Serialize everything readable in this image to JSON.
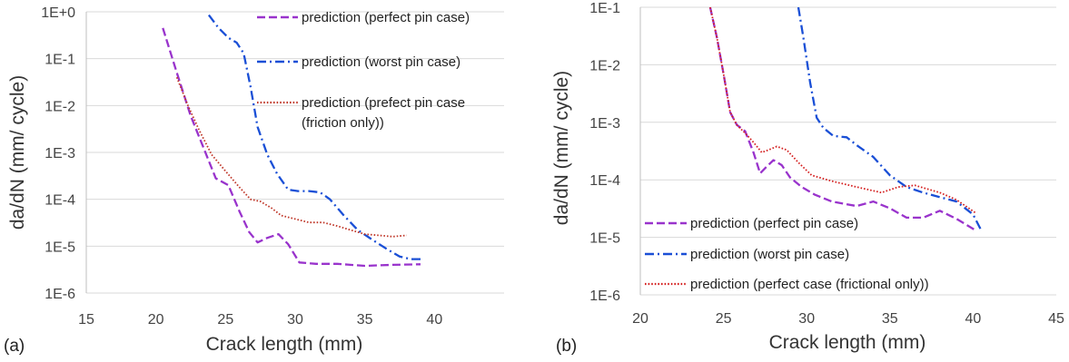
{
  "chart_data": [
    {
      "type": "line",
      "panel_label": "(a)",
      "xlabel": "Crack length (mm)",
      "ylabel": "da/dN (mm/ cycle)",
      "xlim": [
        15,
        45
      ],
      "ylim": [
        1e-06,
        1
      ],
      "y_scale": "log",
      "grid": "horizontal",
      "legend_position": "top-right",
      "x_ticks": [
        "15",
        "20",
        "25",
        "30",
        "35",
        "40"
      ],
      "y_ticks": [
        "1E-6",
        "1E-5",
        "1E-4",
        "1E-3",
        "1E-2",
        "1E-1",
        "1E+0"
      ],
      "series": [
        {
          "name": "prediction (perfect pin case)",
          "color": "#9933cc",
          "style": "dashed",
          "x": [
            20.5,
            21.5,
            22.5,
            23.5,
            24.3,
            25.2,
            26,
            26.7,
            27.3,
            28,
            28.8,
            29.5,
            30.3,
            31.5,
            33,
            35,
            37,
            39
          ],
          "y": [
            0.45,
            0.05,
            0.006,
            0.0011,
            0.00028,
            0.0002,
            5.5e-05,
            2e-05,
            1.2e-05,
            1.5e-05,
            1.8e-05,
            1.1e-05,
            4.5e-06,
            4.2e-06,
            4.2e-06,
            3.8e-06,
            4e-06,
            4.1e-06
          ]
        },
        {
          "name": "prediction (worst pin case)",
          "color": "#1a4fd6",
          "style": "dashdot",
          "x": [
            23.8,
            24.5,
            25.2,
            25.8,
            26.3,
            26.8,
            27.3,
            28,
            28.7,
            29.5,
            30.2,
            31,
            31.8,
            32.5,
            33.5,
            34.5,
            35.5,
            36.5,
            37.5,
            38.3,
            39
          ],
          "y": [
            0.85,
            0.45,
            0.28,
            0.22,
            0.13,
            0.025,
            0.0035,
            0.0009,
            0.00035,
            0.00016,
            0.00015,
            0.00015,
            0.00014,
            0.0001,
            4.5e-05,
            2.2e-05,
            1.4e-05,
            9e-06,
            6e-06,
            5.3e-06,
            5.3e-06
          ]
        },
        {
          "name": "prediction (prefect pin case\n(friction only))",
          "color": "#c0392b",
          "style": "dotted",
          "x": [
            21.5,
            22.3,
            23.1,
            24,
            25,
            26,
            26.8,
            27.5,
            28.3,
            29,
            30,
            31,
            32,
            33,
            34,
            35,
            36,
            37,
            38
          ],
          "y": [
            0.04,
            0.01,
            0.003,
            0.0009,
            0.0004,
            0.00018,
            0.0001,
            9e-05,
            6.5e-05,
            4.5e-05,
            3.8e-05,
            3.2e-05,
            3.2e-05,
            2.7e-05,
            2.2e-05,
            1.8e-05,
            1.7e-05,
            1.6e-05,
            1.7e-05
          ]
        }
      ]
    },
    {
      "type": "line",
      "panel_label": "(b)",
      "xlabel": "Crack length (mm)",
      "ylabel": "da/dN (mm/ cycle)",
      "xlim": [
        20,
        45
      ],
      "ylim": [
        1e-06,
        0.1
      ],
      "y_scale": "log",
      "grid": "horizontal",
      "legend_position": "bottom-left",
      "x_ticks": [
        "20",
        "25",
        "30",
        "35",
        "40",
        "45"
      ],
      "y_ticks": [
        "1E-6",
        "1E-5",
        "1E-4",
        "1E-3",
        "1E-2",
        "1E-1"
      ],
      "series": [
        {
          "name": "prediction (perfect pin case)",
          "color": "#9933cc",
          "style": "dashed",
          "x": [
            24.2,
            24.6,
            25,
            25.4,
            25.8,
            26.3,
            26.8,
            27.2,
            27.6,
            28,
            28.5,
            29,
            29.7,
            30.5,
            31.5,
            33,
            34,
            35,
            36,
            37,
            38,
            39,
            40.2
          ],
          "y": [
            0.1,
            0.03,
            0.007,
            0.0015,
            0.0009,
            0.0007,
            0.0003,
            0.00013,
            0.00017,
            0.00022,
            0.00018,
            0.00011,
            7.5e-05,
            5.5e-05,
            4.2e-05,
            3.5e-05,
            4.2e-05,
            3.2e-05,
            2.2e-05,
            2.2e-05,
            2.9e-05,
            2.1e-05,
            1.3e-05
          ]
        },
        {
          "name": "prediction (worst pin case)",
          "color": "#1a4fd6",
          "style": "dashdot",
          "x": [
            29.5,
            29.8,
            30.2,
            30.6,
            31,
            31.6,
            32.4,
            33,
            34,
            35,
            36,
            37,
            38,
            39,
            40,
            40.5
          ],
          "y": [
            0.1,
            0.03,
            0.005,
            0.0012,
            0.0008,
            0.00058,
            0.00055,
            0.0004,
            0.00025,
            0.00012,
            7.5e-05,
            6e-05,
            5e-05,
            4.2e-05,
            2.5e-05,
            1.3e-05
          ]
        },
        {
          "name": "prediction (perfect case (frictional only))",
          "color": "#d42020",
          "style": "dotted",
          "x": [
            24.2,
            24.6,
            25,
            25.4,
            25.8,
            26.3,
            26.8,
            27.3,
            27.7,
            28.2,
            28.8,
            29.5,
            30.3,
            31.5,
            33,
            34.5,
            35.5,
            36.5,
            38,
            39,
            40.2
          ],
          "y": [
            0.1,
            0.03,
            0.007,
            0.0015,
            0.0009,
            0.00065,
            0.00045,
            0.0003,
            0.00033,
            0.00038,
            0.00033,
            0.0002,
            0.00012,
            9.5e-05,
            7.5e-05,
            6e-05,
            7.5e-05,
            8e-05,
            6e-05,
            4.5e-05,
            2.6e-05
          ]
        }
      ]
    }
  ]
}
